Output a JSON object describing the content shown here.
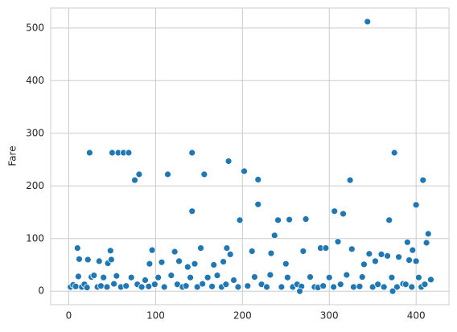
{
  "chart_data": {
    "type": "scatter",
    "ylabel": "Fare",
    "x": [
      2,
      5,
      8,
      11,
      15,
      18,
      21,
      26,
      29,
      33,
      37,
      40,
      44,
      52,
      55,
      60,
      66,
      72,
      79,
      84,
      88,
      92,
      99,
      103,
      110,
      118,
      125,
      131,
      135,
      140,
      148,
      154,
      160,
      165,
      171,
      176,
      181,
      190,
      195,
      206,
      214,
      222,
      228,
      232,
      245,
      252,
      258,
      263,
      268,
      278,
      283,
      287,
      293,
      300,
      305,
      313,
      320,
      328,
      335,
      338,
      350,
      356,
      363,
      372,
      378,
      385,
      388,
      395,
      403,
      406,
      410,
      417,
      24,
      50,
      57,
      63,
      69,
      76,
      81,
      114,
      142,
      142,
      156,
      184,
      202,
      218,
      218,
      197,
      241,
      254,
      273,
      306,
      316,
      324,
      344,
      369,
      375,
      400,
      408,
      414,
      412,
      237,
      390,
      10,
      48,
      96,
      122,
      152,
      182,
      186,
      211,
      233,
      270,
      290,
      296,
      310,
      326,
      346,
      360,
      367,
      380,
      396,
      12,
      22,
      35,
      45,
      49,
      93,
      107,
      127,
      137,
      145,
      167,
      178,
      250,
      340,
      353,
      392,
      400,
      266,
      373
    ],
    "values": [
      8,
      12,
      9,
      28,
      8,
      13,
      7,
      27,
      30,
      8,
      10,
      26,
      8,
      14,
      29,
      8,
      10,
      26,
      13,
      8,
      21,
      9,
      13,
      26,
      8,
      30,
      13,
      8,
      10,
      26,
      8,
      14,
      26,
      9,
      30,
      8,
      13,
      21,
      8,
      10,
      27,
      13,
      8,
      31,
      8,
      26,
      8,
      13,
      9,
      27,
      8,
      7,
      10,
      26,
      8,
      13,
      31,
      8,
      9,
      27,
      8,
      13,
      8,
      26,
      8,
      14,
      13,
      8,
      26,
      8,
      13,
      22,
      263,
      263,
      263,
      263,
      263,
      211,
      222,
      222,
      263,
      152,
      222,
      247,
      228,
      212,
      165,
      135,
      135,
      136,
      137,
      152,
      147,
      211,
      512,
      135,
      263,
      164,
      211,
      109,
      92,
      106,
      93,
      82,
      77,
      78,
      75,
      82,
      82,
      70,
      76,
      72,
      76,
      82,
      82,
      94,
      80,
      71,
      70,
      67,
      65,
      78,
      61,
      60,
      57,
      53,
      60,
      52,
      55,
      57,
      46,
      52,
      50,
      56,
      52,
      51,
      57,
      59,
      57,
      0,
      0
    ],
    "color": "#1f77b4",
    "xlim": [
      -20.85,
      437.85
    ],
    "xticks": [
      0,
      100,
      200,
      300,
      400
    ],
    "ylim": [
      -25.6,
      537.9
    ],
    "yticks": [
      0,
      100,
      200,
      300,
      400,
      500
    ],
    "grid": true
  }
}
